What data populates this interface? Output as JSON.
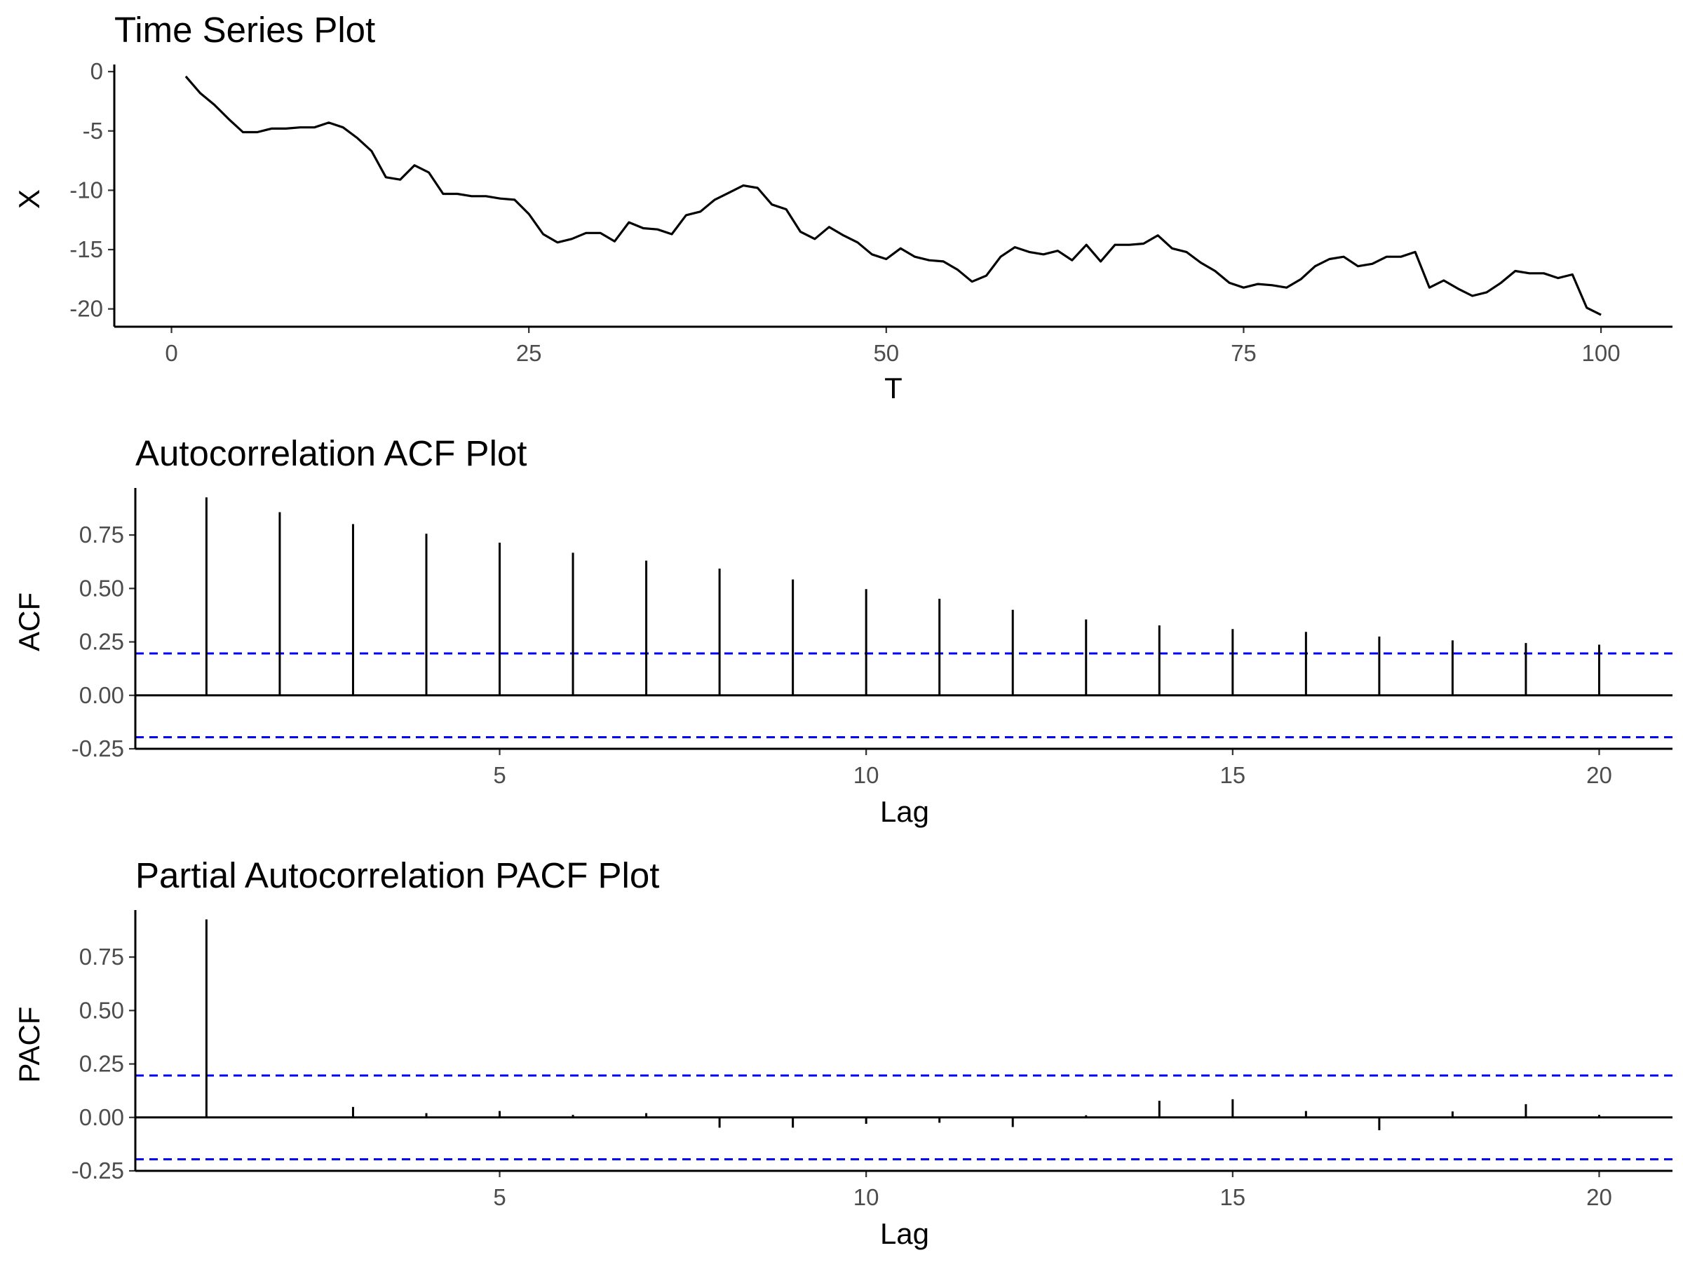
{
  "chart_data": [
    {
      "type": "line",
      "title": "Time Series Plot",
      "xlabel": "T",
      "ylabel": "X",
      "xlim": [
        -4,
        105
      ],
      "ylim": [
        -21.5,
        0.6
      ],
      "xticks": [
        0,
        25,
        50,
        75,
        100
      ],
      "xtick_labels": [
        "0",
        "25",
        "50",
        "75",
        "100"
      ],
      "yticks": [
        0,
        -5,
        -10,
        -15,
        -20
      ],
      "ytick_labels": [
        "0",
        "-5",
        "-10",
        "-15",
        "-20"
      ],
      "grid": false,
      "legend": "none",
      "line_color": "#000000",
      "series": [
        {
          "x": [
            1,
            2,
            3,
            4,
            5,
            6,
            7,
            8,
            9,
            10,
            11,
            12,
            13,
            14,
            15,
            16,
            17,
            18,
            19,
            20,
            21,
            22,
            23,
            24,
            25,
            26,
            27,
            28,
            29,
            30,
            31,
            32,
            33,
            34,
            35,
            36,
            37,
            38,
            39,
            40,
            41,
            42,
            43,
            44,
            45,
            46,
            47,
            48,
            49,
            50,
            51,
            52,
            53,
            54,
            55,
            56,
            57,
            58,
            59,
            60,
            61,
            62,
            63,
            64,
            65,
            66,
            67,
            68,
            69,
            70,
            71,
            72,
            73,
            74,
            75,
            76,
            77,
            78,
            79,
            80,
            81,
            82,
            83,
            84,
            85,
            86,
            87,
            88,
            89,
            90,
            91,
            92,
            93,
            94,
            95,
            96,
            97,
            98,
            99,
            100
          ],
          "y": [
            -0.4,
            -1.8,
            -2.8,
            -4.0,
            -5.1,
            -5.1,
            -4.8,
            -4.8,
            -4.7,
            -4.7,
            -4.3,
            -4.7,
            -5.6,
            -6.7,
            -8.9,
            -9.1,
            -7.9,
            -8.5,
            -10.3,
            -10.3,
            -10.5,
            -10.5,
            -10.7,
            -10.8,
            -12.0,
            -13.7,
            -14.4,
            -14.1,
            -13.6,
            -13.6,
            -14.3,
            -12.7,
            -13.2,
            -13.3,
            -13.7,
            -12.1,
            -11.8,
            -10.8,
            -10.2,
            -9.6,
            -9.8,
            -11.2,
            -11.6,
            -13.5,
            -14.1,
            -13.1,
            -13.8,
            -14.4,
            -15.4,
            -15.8,
            -14.9,
            -15.6,
            -15.9,
            -16.0,
            -16.7,
            -17.7,
            -17.2,
            -15.6,
            -14.8,
            -15.2,
            -15.4,
            -15.1,
            -15.9,
            -14.6,
            -16.0,
            -14.6,
            -14.6,
            -14.5,
            -13.8,
            -14.9,
            -15.2,
            -16.1,
            -16.8,
            -17.8,
            -18.2,
            -17.9,
            -18.0,
            -18.2,
            -17.5,
            -16.4,
            -15.8,
            -15.6,
            -16.4,
            -16.2,
            -15.6,
            -15.6,
            -15.2,
            -18.2,
            -17.6,
            -18.3,
            -18.9,
            -18.6,
            -17.8,
            -16.8,
            -17.0,
            -17.0,
            -17.4,
            -17.1,
            -19.9,
            -20.5
          ]
        }
      ]
    },
    {
      "type": "bar",
      "title": "Autocorrelation ACF Plot",
      "xlabel": "Lag",
      "ylabel": "ACF",
      "xlim": [
        0.03,
        21
      ],
      "ylim": [
        -0.25,
        0.97
      ],
      "xticks": [
        5,
        10,
        15,
        20
      ],
      "xtick_labels": [
        "5",
        "10",
        "15",
        "20"
      ],
      "yticks": [
        -0.25,
        0,
        0.25,
        0.5,
        0.75
      ],
      "ytick_labels": [
        "-0.25",
        "0.00",
        "0.25",
        "0.50",
        "0.75"
      ],
      "grid": false,
      "legend": "none",
      "bar_color": "#000000",
      "confidence_bound": 0.196,
      "confidence_color": "#0000ff",
      "x": [
        1,
        2,
        3,
        4,
        5,
        6,
        7,
        8,
        9,
        10,
        11,
        12,
        13,
        14,
        15,
        16,
        17,
        18,
        19,
        20
      ],
      "values": [
        0.926,
        0.857,
        0.801,
        0.756,
        0.714,
        0.667,
        0.63,
        0.593,
        0.542,
        0.497,
        0.452,
        0.4,
        0.355,
        0.327,
        0.31,
        0.297,
        0.275,
        0.257,
        0.245,
        0.237
      ]
    },
    {
      "type": "bar",
      "title": "Partial Autocorrelation PACF Plot",
      "xlabel": "Lag",
      "ylabel": "PACF",
      "xlim": [
        0.03,
        21
      ],
      "ylim": [
        -0.25,
        0.97
      ],
      "xticks": [
        5,
        10,
        15,
        20
      ],
      "xtick_labels": [
        "5",
        "10",
        "15",
        "20"
      ],
      "yticks": [
        -0.25,
        0,
        0.25,
        0.5,
        0.75
      ],
      "ytick_labels": [
        "-0.25",
        "0.00",
        "0.25",
        "0.50",
        "0.75"
      ],
      "grid": false,
      "legend": "none",
      "bar_color": "#000000",
      "confidence_bound": 0.196,
      "confidence_color": "#0000ff",
      "x": [
        1,
        2,
        3,
        4,
        5,
        6,
        7,
        8,
        9,
        10,
        11,
        12,
        13,
        14,
        15,
        16,
        17,
        18,
        19,
        20
      ],
      "values": [
        0.926,
        -0.002,
        0.049,
        0.02,
        0.03,
        0.012,
        0.02,
        -0.048,
        -0.048,
        -0.03,
        -0.025,
        -0.045,
        0.01,
        0.078,
        0.085,
        0.03,
        -0.06,
        0.028,
        0.062,
        0.012
      ]
    }
  ]
}
